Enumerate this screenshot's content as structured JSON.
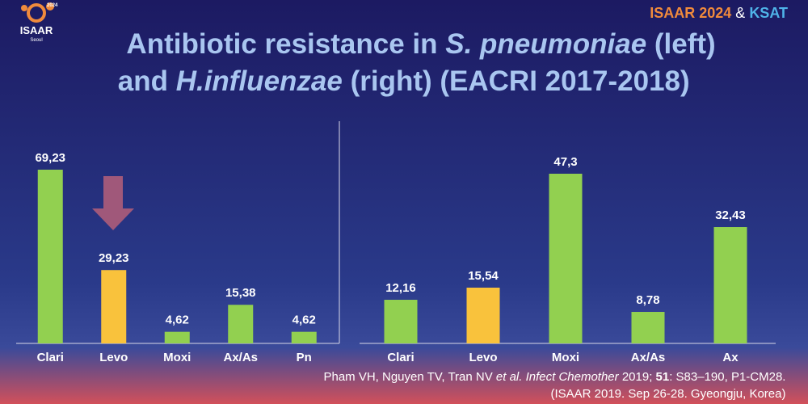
{
  "slide": {
    "logo": {
      "year": "2024",
      "name": "ISAAR",
      "city": "Seoul"
    },
    "header": [
      "ISAAR 2024",
      " & ",
      "KSAT"
    ],
    "title": [
      [
        "Antibiotic resistance in ",
        "S. pneumoniae",
        " (left)"
      ],
      [
        "and ",
        "H.influenzae",
        " (right) (EACRI 2017-2018)"
      ]
    ],
    "citation": [
      [
        "Pham VH, Nguyen TV, Tran NV ",
        "et al. Infect Chemother",
        " 2019; ",
        "51",
        ": S83–190, P1-CM28."
      ],
      [
        "(ISAAR 2019. Sep 26-28. Gyeongju, Korea)"
      ]
    ]
  },
  "chart_data": [
    {
      "type": "bar",
      "categories": [
        "Clari",
        "Levo",
        "Moxi",
        "Ax/As",
        "Pn"
      ],
      "values": [
        69.23,
        29.23,
        4.62,
        15.38,
        4.62
      ],
      "value_labels": [
        "69,23",
        "29,23",
        "4,62",
        "15,38",
        "4,62"
      ],
      "colors": [
        "#92d050",
        "#f9c23c",
        "#92d050",
        "#92d050",
        "#92d050"
      ]
    },
    {
      "type": "bar",
      "categories": [
        "Clari",
        "Levo",
        "Moxi",
        "Ax/As",
        "Ax"
      ],
      "values": [
        12.16,
        15.54,
        47.3,
        8.78,
        32.43
      ],
      "value_labels": [
        "12,16",
        "15,54",
        "47,3",
        "8,78",
        "32,43"
      ],
      "colors": [
        "#92d050",
        "#f9c23c",
        "#92d050",
        "#92d050",
        "#92d050"
      ]
    }
  ]
}
